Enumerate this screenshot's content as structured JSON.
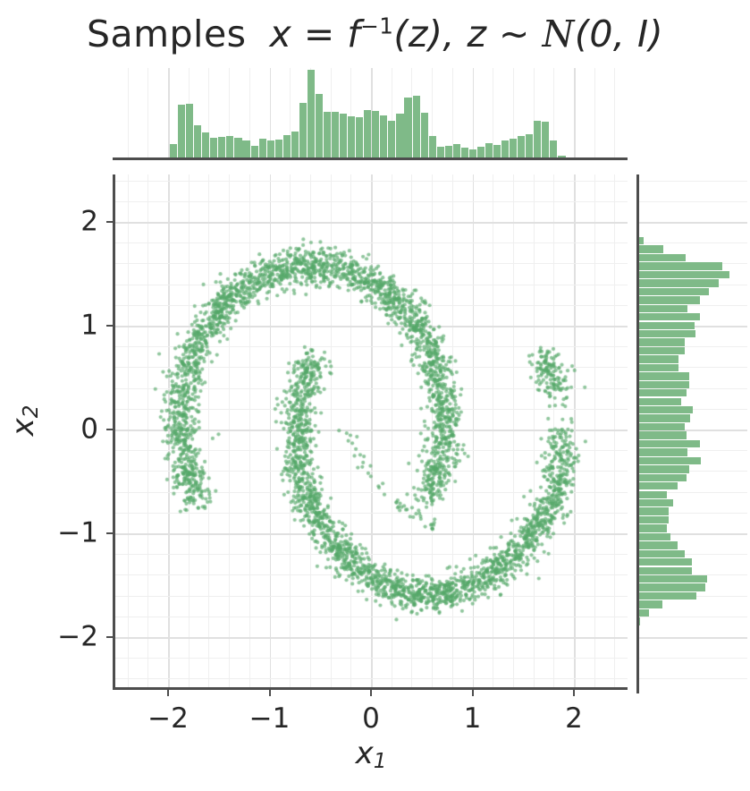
{
  "title": {
    "text": "Samples  x = f⁻¹(z),  z ∼ 𝒩(0, I)",
    "parts": {
      "prefix": "Samples",
      "math_a": "x = f",
      "sup": "−1",
      "math_b": "(z),  z ∼ ",
      "script_n": "N",
      "math_c": "(0, I)"
    }
  },
  "axes": {
    "xlabel": {
      "text": "x₁",
      "base": "x",
      "sub": "1"
    },
    "ylabel": {
      "text": "x₂",
      "base": "x",
      "sub": "2"
    },
    "xlim": [
      -2.55,
      2.53
    ],
    "ylim": [
      -2.51,
      2.46
    ],
    "x_tick_values": [
      -2,
      -1,
      0,
      1,
      2
    ],
    "x_tick_labels": [
      "−2",
      "−1",
      "0",
      "1",
      "2"
    ],
    "y_tick_values": [
      2,
      1,
      0,
      -1,
      -2
    ],
    "y_tick_labels": [
      "2",
      "1",
      "0",
      "−1",
      "−2"
    ],
    "minor_step": 0.2,
    "grid": true
  },
  "colors": {
    "point": "rgba(85,168,104,0.65)",
    "bar": "#7fba88",
    "spine": "#4d4d4d",
    "grid_minor": "#efefef",
    "grid_major": "#e0e0e0",
    "text": "#262626"
  },
  "chart_data": [
    {
      "type": "bar",
      "role": "top-marginal-histogram",
      "variable": "x1",
      "orientation": "vertical",
      "bin_range": [
        -1.98,
        1.92
      ],
      "bins": 49,
      "heights_norm": [
        0.15,
        0.6,
        0.61,
        0.37,
        0.29,
        0.22,
        0.23,
        0.24,
        0.22,
        0.19,
        0.13,
        0.21,
        0.19,
        0.2,
        0.26,
        0.3,
        0.62,
        1.0,
        0.72,
        0.52,
        0.52,
        0.5,
        0.47,
        0.46,
        0.54,
        0.53,
        0.48,
        0.42,
        0.5,
        0.68,
        0.7,
        0.51,
        0.24,
        0.12,
        0.13,
        0.15,
        0.11,
        0.09,
        0.12,
        0.16,
        0.14,
        0.19,
        0.21,
        0.24,
        0.27,
        0.42,
        0.41,
        0.19,
        0.02
      ]
    },
    {
      "type": "scatter",
      "role": "joint-distribution",
      "description": "Two interleaved crescent moons (normalizing-flow samples), green dots with transparency",
      "n_points_approx": 4900,
      "x_range": [
        -1.9,
        1.9
      ],
      "y_range": [
        -1.8,
        1.85
      ],
      "seed": 42,
      "moons": [
        {
          "cx": -0.58,
          "cy": 0.08,
          "rx": 1.3,
          "ry": 1.5,
          "deg0": -30,
          "deg1": 210,
          "n": 2350,
          "noise": 0.085
        },
        {
          "cx": 0.58,
          "cy": -0.08,
          "rx": 1.3,
          "ry": 1.5,
          "deg0": 150,
          "deg1": 390,
          "n": 2350,
          "noise": 0.085,
          "thin": {
            "deg0": 360,
            "deg1": 377,
            "keep": 0.1
          }
        }
      ],
      "filaments": [
        {
          "x0": -0.28,
          "y0": -0.02,
          "x1": 0.66,
          "y1": -0.95,
          "bend": -0.16,
          "n": 44,
          "jitter": 0.035
        },
        {
          "x0": -0.8,
          "y0": 0.63,
          "x1": -0.42,
          "y1": 0.52,
          "bend": 0.05,
          "n": 14,
          "jitter": 0.03
        }
      ],
      "marker_radius_px": 2.1
    },
    {
      "type": "bar",
      "role": "right-marginal-histogram",
      "variable": "x2",
      "orientation": "horizontal",
      "bin_range": [
        1.85,
        -1.9
      ],
      "bins": 46,
      "lengths_norm": [
        0.05,
        0.27,
        0.51,
        0.92,
        1.0,
        0.88,
        0.77,
        0.67,
        0.53,
        0.67,
        0.61,
        0.62,
        0.5,
        0.5,
        0.44,
        0.44,
        0.55,
        0.55,
        0.52,
        0.47,
        0.59,
        0.56,
        0.5,
        0.52,
        0.67,
        0.53,
        0.68,
        0.55,
        0.52,
        0.43,
        0.31,
        0.38,
        0.33,
        0.33,
        0.31,
        0.35,
        0.43,
        0.5,
        0.58,
        0.58,
        0.75,
        0.73,
        0.63,
        0.26,
        0.11,
        0.01
      ]
    }
  ]
}
